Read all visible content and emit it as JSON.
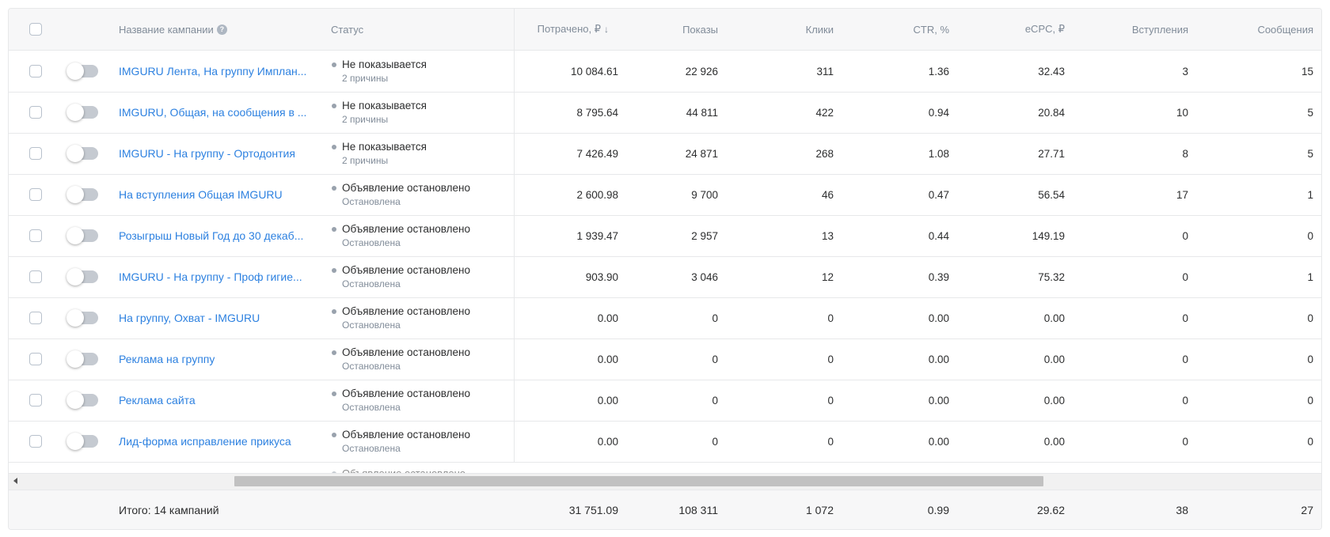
{
  "header": {
    "name": "Название кампании",
    "status": "Статус",
    "spent": "Потрачено, ₽",
    "sort_indicator": "↓",
    "impressions": "Показы",
    "clicks": "Клики",
    "ctr": "CTR, %",
    "ecpc": "eCPC, ₽",
    "joins": "Вступления",
    "messages": "Сообщения"
  },
  "rows": [
    {
      "name": "IMGURU Лента, На группу Имплан...",
      "status": "Не показывается",
      "sub": "2 причины",
      "spent": "10 084.61",
      "impressions": "22 926",
      "clicks": "311",
      "ctr": "1.36",
      "ecpc": "32.43",
      "joins": "3",
      "messages": "15"
    },
    {
      "name": "IMGURU, Общая, на сообщения в ...",
      "status": "Не показывается",
      "sub": "2 причины",
      "spent": "8 795.64",
      "impressions": "44 811",
      "clicks": "422",
      "ctr": "0.94",
      "ecpc": "20.84",
      "joins": "10",
      "messages": "5"
    },
    {
      "name": "IMGURU - На группу - Ортодонтия",
      "status": "Не показывается",
      "sub": "2 причины",
      "spent": "7 426.49",
      "impressions": "24 871",
      "clicks": "268",
      "ctr": "1.08",
      "ecpc": "27.71",
      "joins": "8",
      "messages": "5"
    },
    {
      "name": "На вступления Общая IMGURU",
      "status": "Объявление остановлено",
      "sub": "Остановлена",
      "spent": "2 600.98",
      "impressions": "9 700",
      "clicks": "46",
      "ctr": "0.47",
      "ecpc": "56.54",
      "joins": "17",
      "messages": "1"
    },
    {
      "name": "Розыгрыш Новый Год до 30 декаб...",
      "status": "Объявление остановлено",
      "sub": "Остановлена",
      "spent": "1 939.47",
      "impressions": "2 957",
      "clicks": "13",
      "ctr": "0.44",
      "ecpc": "149.19",
      "joins": "0",
      "messages": "0"
    },
    {
      "name": "IMGURU - На группу - Проф гигие...",
      "status": "Объявление остановлено",
      "sub": "Остановлена",
      "spent": "903.90",
      "impressions": "3 046",
      "clicks": "12",
      "ctr": "0.39",
      "ecpc": "75.32",
      "joins": "0",
      "messages": "1"
    },
    {
      "name": "На группу, Охват - IMGURU",
      "status": "Объявление остановлено",
      "sub": "Остановлена",
      "spent": "0.00",
      "impressions": "0",
      "clicks": "0",
      "ctr": "0.00",
      "ecpc": "0.00",
      "joins": "0",
      "messages": "0"
    },
    {
      "name": "Реклама на группу",
      "status": "Объявление остановлено",
      "sub": "Остановлена",
      "spent": "0.00",
      "impressions": "0",
      "clicks": "0",
      "ctr": "0.00",
      "ecpc": "0.00",
      "joins": "0",
      "messages": "0"
    },
    {
      "name": "Реклама сайта",
      "status": "Объявление остановлено",
      "sub": "Остановлена",
      "spent": "0.00",
      "impressions": "0",
      "clicks": "0",
      "ctr": "0.00",
      "ecpc": "0.00",
      "joins": "0",
      "messages": "0"
    },
    {
      "name": "Лид-форма исправление прикуса",
      "status": "Объявление остановлено",
      "sub": "Остановлена",
      "spent": "0.00",
      "impressions": "0",
      "clicks": "0",
      "ctr": "0.00",
      "ecpc": "0.00",
      "joins": "0",
      "messages": "0"
    }
  ],
  "partial_row_status": "Объявление остановлено",
  "footer": {
    "total_label": "Итого: 14 кампаний",
    "spent": "31 751.09",
    "impressions": "108 311",
    "clicks": "1 072",
    "ctr": "0.99",
    "ecpc": "29.62",
    "joins": "38",
    "messages": "27"
  },
  "colors": {
    "link": "#2d81e0",
    "header_bg": "#f7f7f8",
    "border": "#e7e8ea",
    "muted_text": "#818c99"
  }
}
